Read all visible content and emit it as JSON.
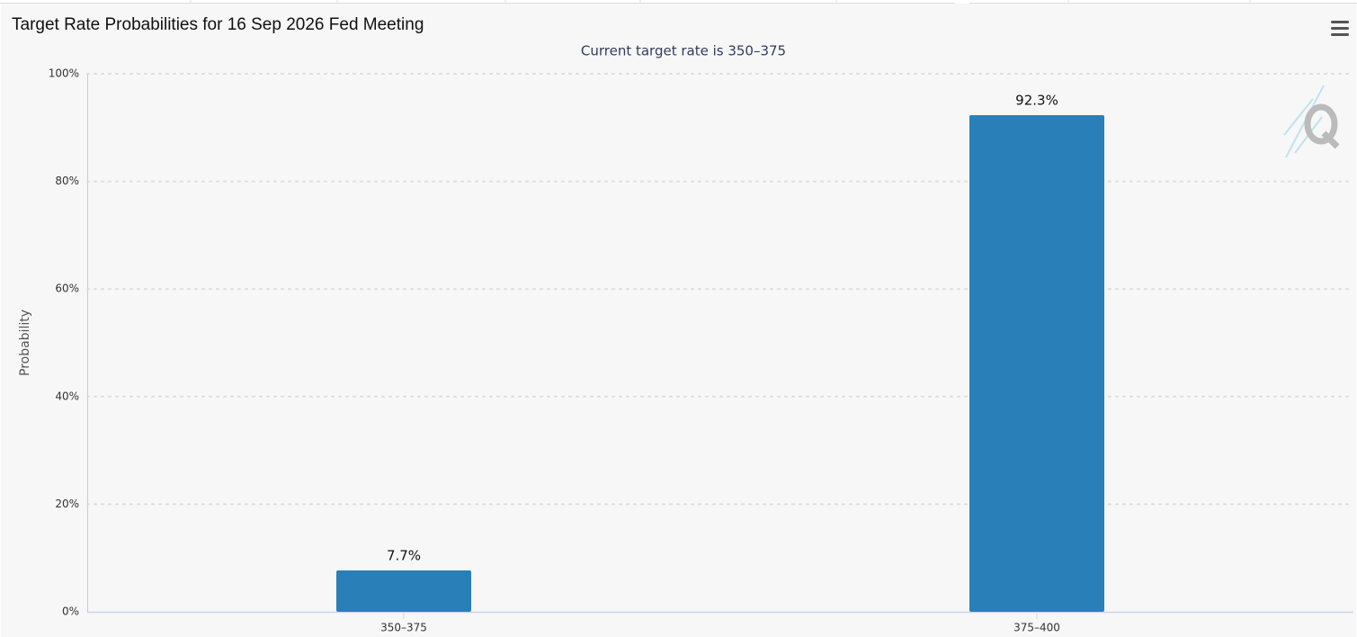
{
  "chart_data": {
    "type": "bar",
    "title": "Target Rate Probabilities for 16 Sep 2026 Fed Meeting",
    "subtitle": "Current target rate is 350–375",
    "y_label": "Probability",
    "categories": [
      "350–375",
      "375–400"
    ],
    "values": [
      7.7,
      92.3
    ],
    "value_labels": [
      "7.7%",
      "92.3%"
    ],
    "color": "#2980b9",
    "ylim": [
      0,
      100
    ],
    "yticks": [
      {
        "value": 0,
        "label": "0%"
      },
      {
        "value": 20,
        "label": "20%"
      },
      {
        "value": 40,
        "label": "40%"
      },
      {
        "value": 60,
        "label": "60%"
      },
      {
        "value": 80,
        "label": "80%"
      },
      {
        "value": 100,
        "label": "100%"
      }
    ],
    "grid": true
  }
}
